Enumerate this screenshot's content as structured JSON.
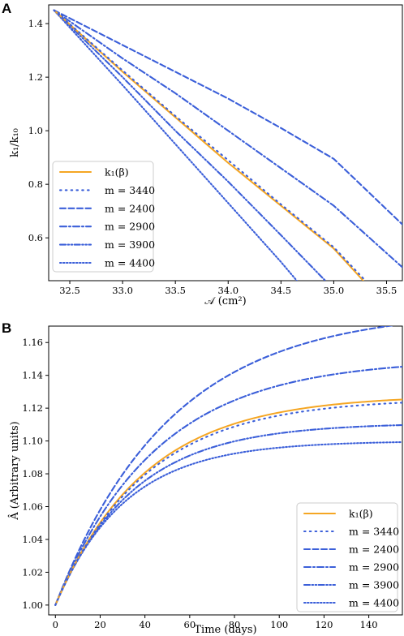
{
  "chart_data": [
    {
      "type": "line",
      "panel_label": "A",
      "xlabel": "𝒜 (cm²)",
      "ylabel": "k₁/k₁₀",
      "xlim": [
        32.3,
        35.65
      ],
      "ylim": [
        0.44,
        1.47
      ],
      "xticks": [
        "32.5",
        "33.0",
        "33.5",
        "34.0",
        "34.5",
        "35.0",
        "35.5"
      ],
      "xtick_values": [
        32.5,
        33.0,
        33.5,
        34.0,
        34.5,
        35.0,
        35.5
      ],
      "yticks": [
        "0.6",
        "0.8",
        "1.0",
        "1.2",
        "1.4"
      ],
      "ytick_values": [
        0.6,
        0.8,
        1.0,
        1.2,
        1.4
      ],
      "grid": false,
      "legend_position": "lower-left",
      "series": [
        {
          "name": "k₁(β)",
          "color": "#f5a623",
          "style": "solid",
          "x": [
            32.35,
            33.0,
            33.5,
            34.0,
            34.5,
            35.0,
            35.28
          ],
          "y": [
            1.45,
            1.22,
            1.05,
            0.88,
            0.72,
            0.56,
            0.44
          ]
        },
        {
          "name": "m = 3440",
          "color": "#3b5fd9",
          "style": "sparse-dot",
          "x": [
            32.35,
            33.0,
            33.5,
            34.0,
            34.5,
            35.0,
            35.3
          ],
          "y": [
            1.45,
            1.225,
            1.055,
            0.89,
            0.725,
            0.565,
            0.44
          ]
        },
        {
          "name": "m = 2400",
          "color": "#3b5fd9",
          "style": "dashed",
          "x": [
            32.35,
            33.0,
            33.5,
            34.0,
            34.5,
            35.0,
            35.65
          ],
          "y": [
            1.45,
            1.32,
            1.22,
            1.12,
            1.01,
            0.895,
            0.65
          ]
        },
        {
          "name": "m = 2900",
          "color": "#3b5fd9",
          "style": "dashdot",
          "x": [
            32.35,
            33.0,
            33.5,
            34.0,
            34.5,
            35.0,
            35.65
          ],
          "y": [
            1.45,
            1.27,
            1.14,
            1.0,
            0.86,
            0.72,
            0.49
          ]
        },
        {
          "name": "m = 3900",
          "color": "#3b5fd9",
          "style": "dashdotdot",
          "x": [
            32.35,
            33.0,
            33.5,
            34.0,
            34.5,
            34.92
          ],
          "y": [
            1.45,
            1.2,
            1.0,
            0.81,
            0.61,
            0.44
          ]
        },
        {
          "name": "m = 4400",
          "color": "#3b5fd9",
          "style": "dotted",
          "x": [
            32.35,
            33.0,
            33.5,
            34.0,
            34.5,
            34.65
          ],
          "y": [
            1.45,
            1.17,
            0.95,
            0.73,
            0.51,
            0.44
          ]
        }
      ]
    },
    {
      "type": "line",
      "panel_label": "B",
      "xlabel": "Time (days)",
      "ylabel": "Â (Arbitrary units)",
      "xlim": [
        -3,
        155
      ],
      "ylim": [
        0.994,
        1.17
      ],
      "xticks": [
        "0",
        "20",
        "40",
        "60",
        "80",
        "100",
        "120",
        "140"
      ],
      "xtick_values": [
        0,
        20,
        40,
        60,
        80,
        100,
        120,
        140
      ],
      "yticks": [
        "1.00",
        "1.02",
        "1.04",
        "1.06",
        "1.08",
        "1.10",
        "1.12",
        "1.14",
        "1.16"
      ],
      "ytick_values": [
        1.0,
        1.02,
        1.04,
        1.06,
        1.08,
        1.1,
        1.12,
        1.14,
        1.16
      ],
      "grid": false,
      "legend_position": "lower-right",
      "series": [
        {
          "name": "k₁(β)",
          "color": "#f5a623",
          "style": "solid",
          "asymptote": 1.128,
          "tau": 40.2
        },
        {
          "name": "m = 3440",
          "color": "#3b5fd9",
          "style": "sparse-dot",
          "asymptote": 1.126,
          "tau": 40.2
        },
        {
          "name": "m = 2400",
          "color": "#3b5fd9",
          "style": "dashed",
          "asymptote": 1.18,
          "tau": 51.4
        },
        {
          "name": "m = 2900",
          "color": "#3b5fd9",
          "style": "dashdot",
          "asymptote": 1.15,
          "tau": 44.9
        },
        {
          "name": "m = 3900",
          "color": "#3b5fd9",
          "style": "dashdotdot",
          "asymptote": 1.111,
          "tau": 34.9
        },
        {
          "name": "m = 4400",
          "color": "#3b5fd9",
          "style": "dotted",
          "asymptote": 1.1,
          "tau": 31.2
        }
      ]
    }
  ]
}
